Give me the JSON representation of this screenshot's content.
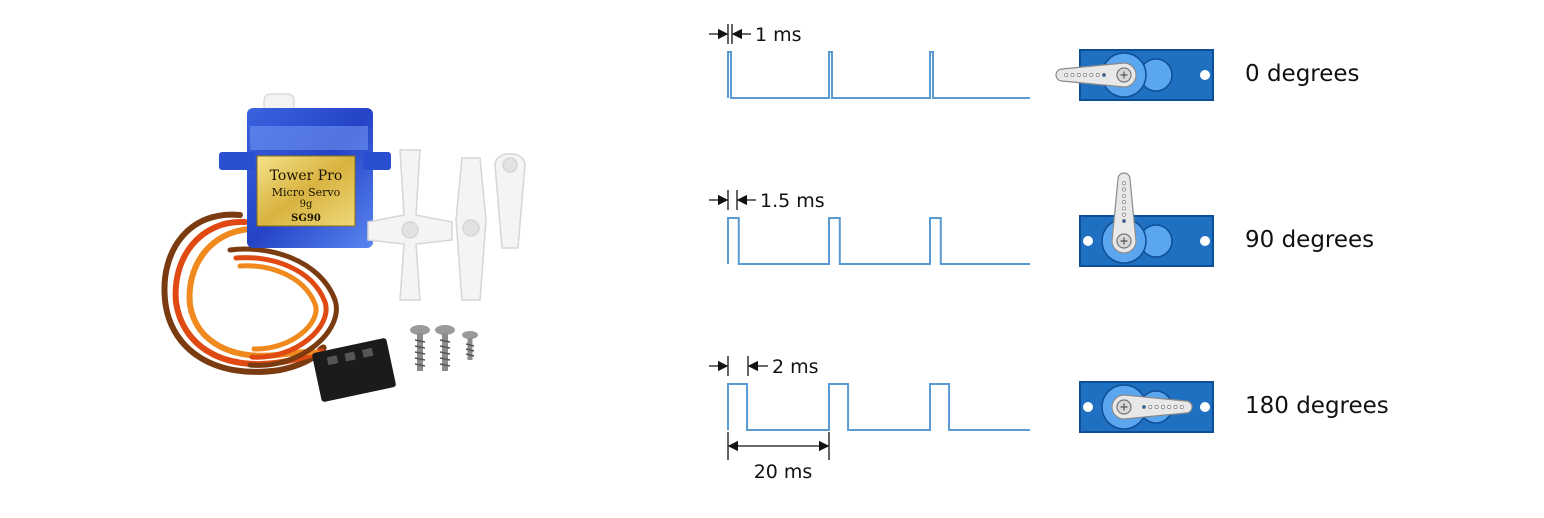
{
  "servo_photo": {
    "brand": "Tower Pro",
    "product": "Micro Servo",
    "weight": "9g",
    "model": "SG90"
  },
  "period": {
    "label": "20 ms"
  },
  "rows": [
    {
      "pulse_label": "1 ms",
      "angle_label": "0 degrees"
    },
    {
      "pulse_label": "1.5 ms",
      "angle_label": "90 degrees"
    },
    {
      "pulse_label": "2 ms",
      "angle_label": "180 degrees"
    }
  ],
  "colors": {
    "signal": "#5b9bd5",
    "servo_body": "#1f70c1",
    "servo_dark": "#0d4f97",
    "servo_light": "#5aa6ef",
    "horn": "#e8e8e8"
  }
}
